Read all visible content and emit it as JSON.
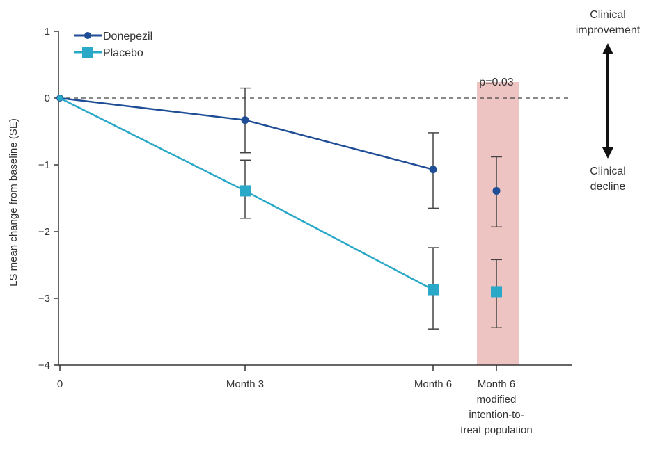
{
  "chart_data": {
    "type": "line",
    "ylabel": "LS mean change from baseline (SE)",
    "ylim": [
      -4,
      1
    ],
    "yticks": [
      1,
      0,
      -1,
      -2,
      -3,
      -4
    ],
    "categories": [
      "0",
      "Month 3",
      "Month 6",
      "Month 6 modified intention-to-treat population"
    ],
    "category_label_lines": [
      [
        "0"
      ],
      [
        "Month 3"
      ],
      [
        "Month 6"
      ],
      [
        "Month 6",
        "modified",
        "intention-to-",
        "treat population"
      ]
    ],
    "reference_line": 0,
    "highlight_category": 3,
    "highlight_color": "#eec4c2",
    "highlight_label": "p=0.03",
    "legend_position": "top-left",
    "series": [
      {
        "name": "Donepezil",
        "marker": "circle",
        "color": "#1f4e96",
        "values": [
          0,
          -0.33,
          -1.07,
          -1.39
        ],
        "err_low": [
          null,
          -0.82,
          -1.65,
          -1.93
        ],
        "err_high": [
          null,
          0.15,
          -0.52,
          -0.88
        ],
        "connect": [
          true,
          true,
          true,
          false
        ]
      },
      {
        "name": "Placebo",
        "marker": "square",
        "color": "#2aa8c8",
        "values": [
          0,
          -1.39,
          -2.87,
          -2.9
        ],
        "err_low": [
          null,
          -1.8,
          -3.46,
          -3.44
        ],
        "err_high": [
          null,
          -0.93,
          -2.24,
          -2.42
        ],
        "connect": [
          true,
          true,
          true,
          false
        ]
      }
    ],
    "annotations": {
      "improvement_lines": [
        "Clinical",
        "improvement"
      ],
      "decline_lines": [
        "Clinical",
        "decline"
      ]
    }
  }
}
